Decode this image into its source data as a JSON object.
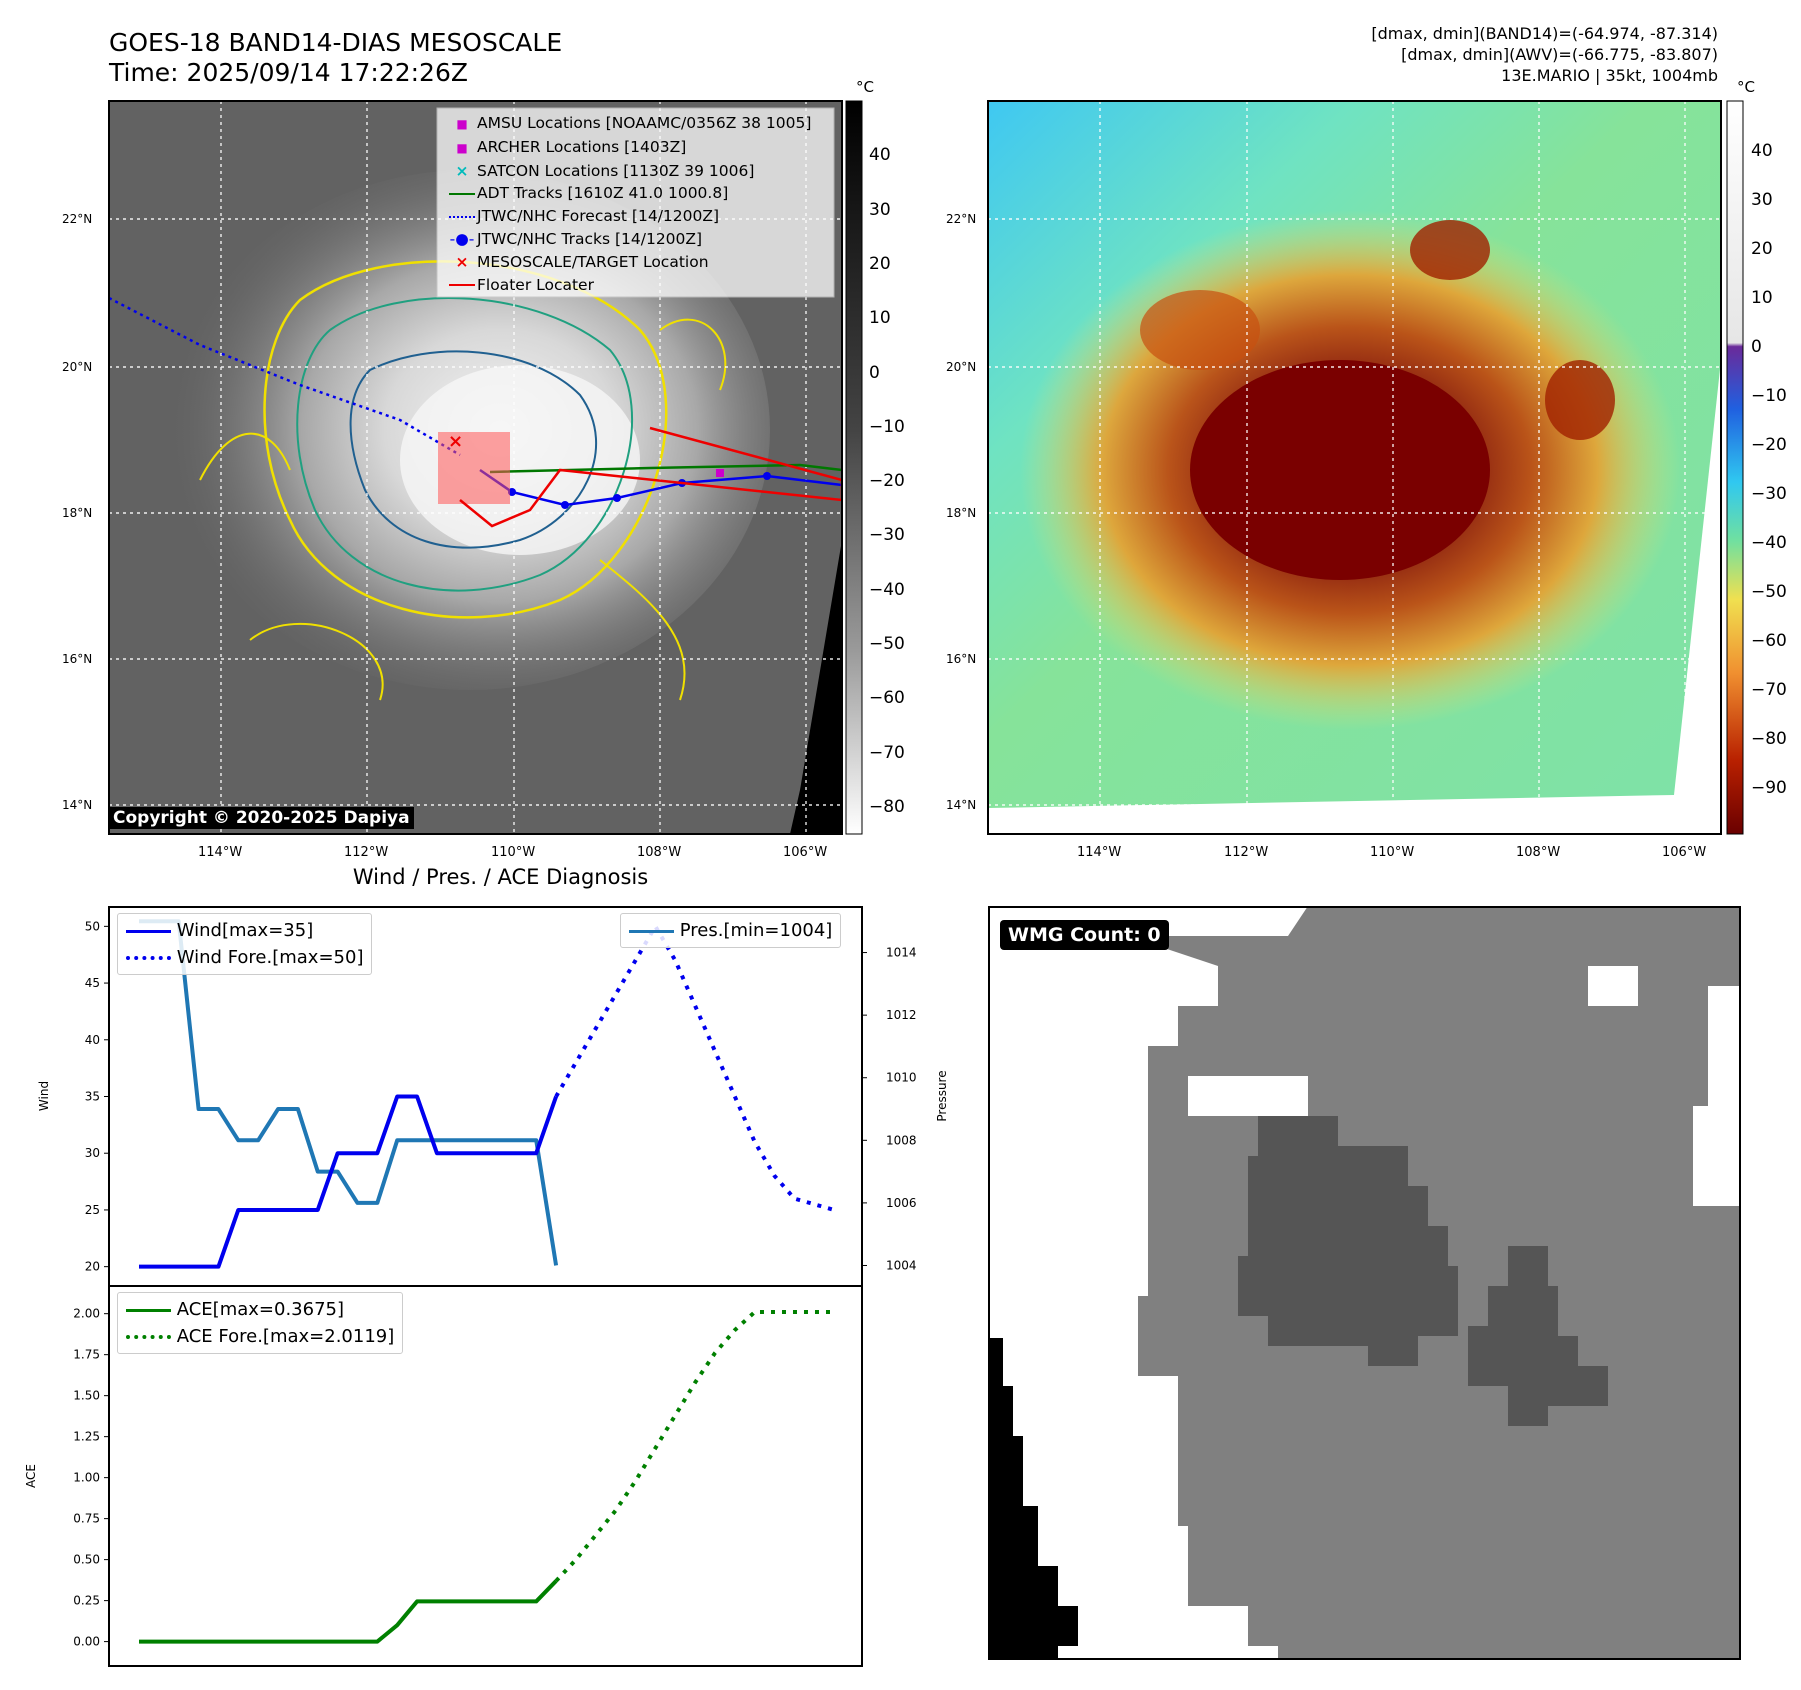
{
  "header": {
    "title_line1": "GOES-18 BAND14-DIAS MESOSCALE",
    "title_line2": "Time: 2025/09/14 17:22:26Z",
    "info_line1": "[dmax, dmin](BAND14)=(-64.974, -87.314)",
    "info_line2": "[dmax, dmin](AWV)=(-66.775, -83.807)",
    "info_line3": "13E.MARIO | 35kt, 1004mb"
  },
  "maps": {
    "lat_labels": [
      "22°N",
      "20°N",
      "18°N",
      "16°N",
      "14°N"
    ],
    "lon_labels": [
      "114°W",
      "112°W",
      "110°W",
      "108°W",
      "106°W"
    ],
    "unit": "°C",
    "copyright": "Copyright © 2020-2025 Dapiya",
    "left_colorbar_ticks": [
      "40",
      "30",
      "20",
      "10",
      "0",
      "−10",
      "−20",
      "−30",
      "−40",
      "−50",
      "−60",
      "−70",
      "−80"
    ],
    "right_colorbar_ticks": [
      "40",
      "30",
      "20",
      "10",
      "0",
      "−10",
      "−20",
      "−30",
      "−40",
      "−50",
      "−60",
      "−70",
      "−80",
      "−90"
    ],
    "legend": [
      {
        "label": "AMSU Locations [NOAAMC/0356Z 38 1005]",
        "color": "#cc00cc",
        "marker": "square"
      },
      {
        "label": "ARCHER Locations [1403Z]",
        "color": "#cc00cc",
        "marker": "square"
      },
      {
        "label": "SATCON Locations [1130Z 39 1006]",
        "color": "#00bbbb",
        "marker": "x"
      },
      {
        "label": "ADT Tracks [1610Z 41.0 1000.8]",
        "color": "#007700",
        "marker": "line"
      },
      {
        "label": "JTWC/NHC Forecast [14/1200Z]",
        "color": "#0000ee",
        "marker": "dotted"
      },
      {
        "label": "JTWC/NHC Tracks [14/1200Z]",
        "color": "#0000ee",
        "marker": "line-dot"
      },
      {
        "label": "MESOSCALE/TARGET Location",
        "color": "#ee0000",
        "marker": "x"
      },
      {
        "label": "Floater Locater",
        "color": "#ee0000",
        "marker": "line"
      }
    ]
  },
  "diagnosis": {
    "title": "Wind / Pres. / ACE Diagnosis",
    "wmg_label": "WMG Count: 0"
  },
  "chart_data": [
    {
      "type": "line",
      "title": "Wind / Pres. / ACE Diagnosis",
      "xlabel": "",
      "ylabel": "Wind",
      "ylabel_right": "Pressure",
      "ylim": [
        19,
        51
      ],
      "ylim_right": [
        1003.6,
        1015.2
      ],
      "yticks": [
        "20",
        "25",
        "30",
        "35",
        "40",
        "45",
        "50"
      ],
      "yticks_right": [
        "1004",
        "1006",
        "1008",
        "1010",
        "1012",
        "1014"
      ],
      "x": [
        0,
        1,
        2,
        3,
        4,
        5,
        6,
        7,
        8,
        9,
        10,
        11,
        12,
        13,
        14,
        15,
        16,
        17,
        18,
        19,
        20,
        21,
        22,
        23,
        24,
        25,
        26,
        27,
        28,
        29,
        30,
        31,
        32,
        33,
        34,
        35
      ],
      "series": [
        {
          "name": "Wind[max=35]",
          "axis": "left",
          "color": "#0000ee",
          "style": "solid",
          "values": [
            20,
            20,
            20,
            20,
            20,
            25,
            25,
            25,
            25,
            25,
            30,
            30,
            30,
            35,
            35,
            30,
            30,
            30,
            30,
            30,
            30,
            35,
            null,
            null,
            null,
            null,
            null,
            null,
            null,
            null,
            null,
            null,
            null,
            null,
            null,
            null
          ]
        },
        {
          "name": "Wind Fore.[max=50]",
          "axis": "left",
          "color": "#0000ee",
          "style": "dotted",
          "values": [
            null,
            null,
            null,
            null,
            null,
            null,
            null,
            null,
            null,
            null,
            null,
            null,
            null,
            null,
            null,
            null,
            null,
            null,
            null,
            null,
            null,
            35,
            38,
            41,
            44,
            47,
            50,
            47,
            43,
            39,
            35,
            31,
            28,
            26,
            25.5,
            25
          ]
        },
        {
          "name": "Pres.[min=1004]",
          "axis": "right",
          "color": "#1f77b4",
          "style": "solid",
          "values": [
            1015,
            1015,
            1015,
            1009,
            1009,
            1008,
            1008,
            1009,
            1009,
            1007,
            1007,
            1006,
            1006,
            1008,
            1008,
            1008,
            1008,
            1008,
            1008,
            1008,
            1008,
            1004,
            null,
            null,
            null,
            null,
            null,
            null,
            null,
            null,
            null,
            null,
            null,
            null,
            null,
            null
          ]
        }
      ]
    },
    {
      "type": "line",
      "title": "",
      "xlabel": "",
      "ylabel": "ACE",
      "ylim": [
        -0.1,
        2.12
      ],
      "yticks": [
        "0.00",
        "0.25",
        "0.50",
        "0.75",
        "1.00",
        "1.25",
        "1.50",
        "1.75",
        "2.00"
      ],
      "x": [
        0,
        1,
        2,
        3,
        4,
        5,
        6,
        7,
        8,
        9,
        10,
        11,
        12,
        13,
        14,
        15,
        16,
        17,
        18,
        19,
        20,
        21,
        22,
        23,
        24,
        25,
        26,
        27,
        28,
        29,
        30,
        31,
        32,
        33,
        34,
        35
      ],
      "series": [
        {
          "name": "ACE[max=0.3675]",
          "color": "#008000",
          "style": "solid",
          "values": [
            0,
            0,
            0,
            0,
            0,
            0,
            0,
            0,
            0,
            0,
            0,
            0,
            0,
            0.1,
            0.245,
            0.245,
            0.245,
            0.245,
            0.245,
            0.245,
            0.245,
            0.37,
            null,
            null,
            null,
            null,
            null,
            null,
            null,
            null,
            null,
            null,
            null,
            null,
            null,
            null
          ]
        },
        {
          "name": "ACE Fore.[max=2.0119]",
          "color": "#008000",
          "style": "dotted",
          "values": [
            null,
            null,
            null,
            null,
            null,
            null,
            null,
            null,
            null,
            null,
            null,
            null,
            null,
            null,
            null,
            null,
            null,
            null,
            null,
            null,
            null,
            0.37,
            0.5,
            0.65,
            0.8,
            0.98,
            1.18,
            1.38,
            1.58,
            1.76,
            1.9,
            2.01,
            2.01,
            2.01,
            2.01,
            2.01
          ]
        }
      ]
    }
  ]
}
